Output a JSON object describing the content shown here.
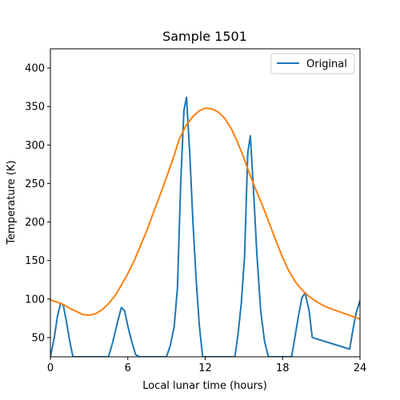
{
  "chart_data": {
    "type": "line",
    "title": "Sample 1501",
    "xlabel": "Local lunar time (hours)",
    "ylabel": "Temperature (K)",
    "xlim": [
      0,
      24
    ],
    "ylim": [
      25,
      425
    ],
    "xticks": [
      0,
      6,
      12,
      18,
      24
    ],
    "yticks": [
      50,
      100,
      150,
      200,
      250,
      300,
      350,
      400
    ],
    "grid": false,
    "legend": {
      "placement": "top-right",
      "entries": [
        "Original"
      ]
    },
    "series": [
      {
        "name": "Original",
        "color": "#1f77b4",
        "x": [
          0,
          0.3,
          0.55,
          0.8,
          1.0,
          1.25,
          1.5,
          1.75,
          4.5,
          4.85,
          5.2,
          5.5,
          5.75,
          6.0,
          6.3,
          6.6,
          6.9,
          7.2,
          9.0,
          9.3,
          9.6,
          9.85,
          10.1,
          10.35,
          10.55,
          10.8,
          11.05,
          11.3,
          11.55,
          11.8,
          14.3,
          14.55,
          14.8,
          15.05,
          15.3,
          15.5,
          15.75,
          16.0,
          16.3,
          16.6,
          16.9,
          18.7,
          19.0,
          19.25,
          19.5,
          19.75,
          20.05,
          20.3,
          23.2,
          23.45,
          23.7,
          24.0
        ],
        "y": [
          25,
          50,
          78,
          95,
          92,
          70,
          45,
          25,
          25,
          45,
          70,
          89,
          85,
          65,
          45,
          28,
          25,
          25,
          25,
          40,
          65,
          115,
          250,
          345,
          362,
          290,
          200,
          125,
          65,
          25,
          25,
          55,
          95,
          155,
          290,
          312,
          240,
          160,
          85,
          45,
          25,
          25,
          55,
          80,
          102,
          108,
          85,
          50,
          35,
          60,
          82,
          98
        ]
      },
      {
        "name": "",
        "color": "#ff7f0e",
        "x": [
          0,
          0.5,
          1,
          1.5,
          2,
          2.5,
          3,
          3.5,
          4,
          4.5,
          5,
          5.5,
          6,
          6.5,
          7,
          7.5,
          8,
          8.5,
          9,
          9.5,
          10,
          10.5,
          11,
          11.5,
          12,
          12.5,
          13,
          13.5,
          14,
          14.5,
          15,
          15.5,
          16,
          16.5,
          17,
          17.5,
          18,
          18.5,
          19,
          19.5,
          20,
          20.5,
          21,
          21.5,
          22,
          22.5,
          23,
          23.5,
          24
        ],
        "y": [
          99,
          96,
          93,
          88,
          84,
          80,
          79,
          81,
          86,
          94,
          104,
          118,
          133,
          150,
          170,
          190,
          213,
          235,
          258,
          282,
          308,
          325,
          336,
          344,
          348,
          347,
          343,
          335,
          322,
          304,
          283,
          260,
          239,
          219,
          197,
          175,
          154,
          136,
          122,
          112,
          104,
          98,
          93,
          89,
          86,
          83,
          80,
          77,
          74
        ]
      }
    ]
  }
}
